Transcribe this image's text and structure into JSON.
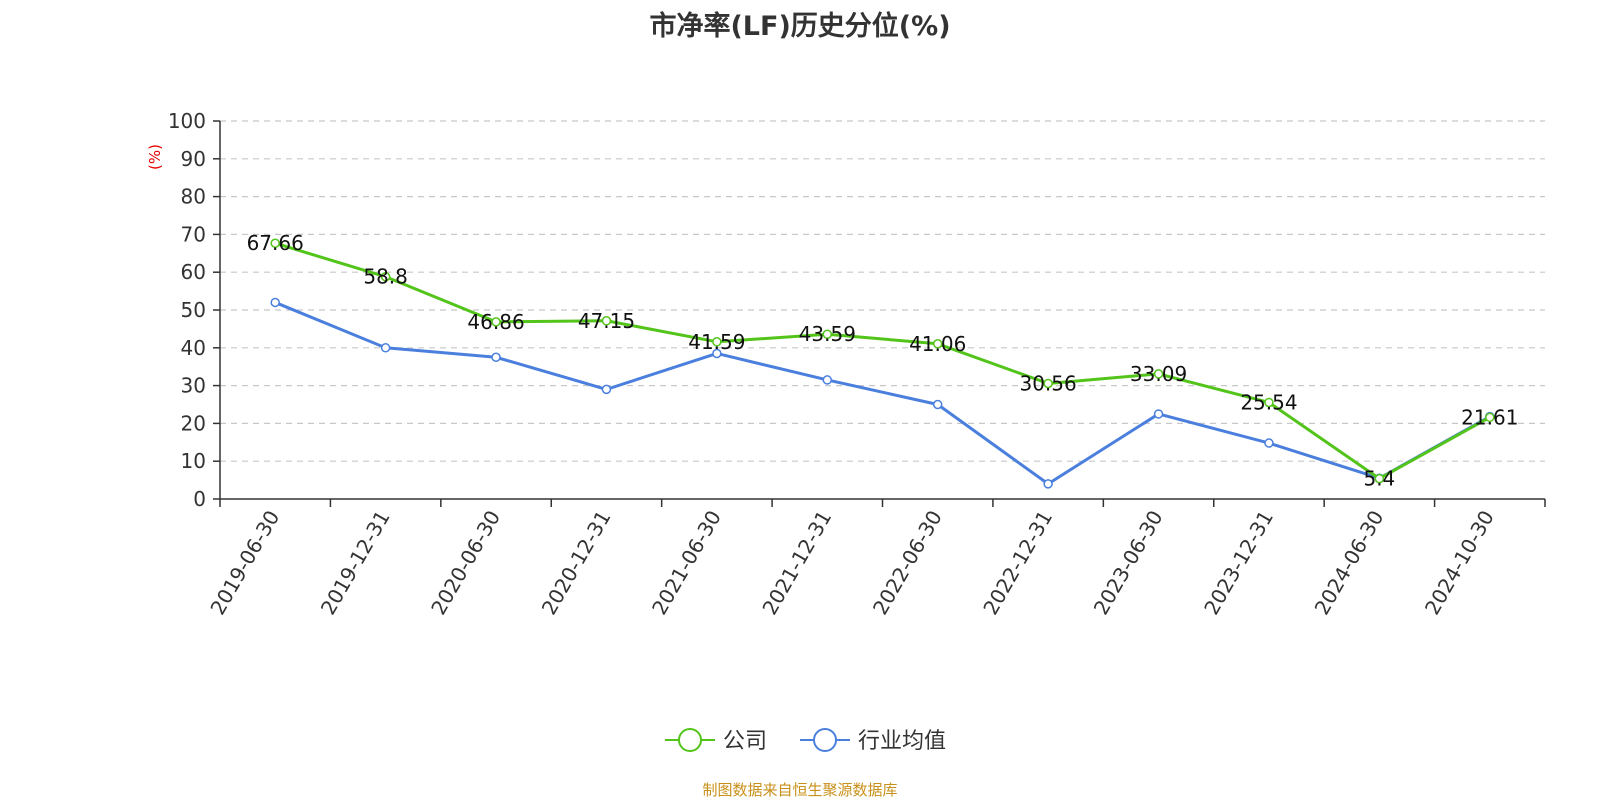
{
  "chart_data": {
    "type": "line",
    "title": "市净率(LF)历史分位(%)",
    "ylabel": "(%)",
    "xlabel": "",
    "ylim": [
      0,
      100
    ],
    "yticks": [
      "0",
      "10",
      "20",
      "30",
      "40",
      "50",
      "60",
      "70",
      "80",
      "90",
      "100"
    ],
    "categories": [
      "2019-06-30",
      "2019-12-31",
      "2020-06-30",
      "2020-12-31",
      "2021-06-30",
      "2021-12-31",
      "2022-06-30",
      "2022-12-31",
      "2023-06-30",
      "2023-12-31",
      "2024-06-30",
      "2024-10-30"
    ],
    "series": [
      {
        "name": "公司",
        "color": "#52c41a",
        "values": [
          67.66,
          58.8,
          46.86,
          47.15,
          41.59,
          43.59,
          41.06,
          30.56,
          33.09,
          25.54,
          5.4,
          21.61
        ],
        "data_labels": [
          "67.66",
          "58.8",
          "46.86",
          "47.15",
          "41.59",
          "43.59",
          "41.06",
          "30.56",
          "33.09",
          "25.54",
          "5.4",
          "21.61"
        ]
      },
      {
        "name": "行业均值",
        "color": "#4a7fde",
        "values": [
          52,
          40,
          37.5,
          29,
          38.5,
          31.5,
          25,
          4,
          22.5,
          14.8,
          5.5,
          21.8
        ]
      }
    ],
    "grid": true,
    "legend_position": "bottom"
  },
  "footer": {
    "source": "制图数据来自恒生聚源数据库"
  }
}
